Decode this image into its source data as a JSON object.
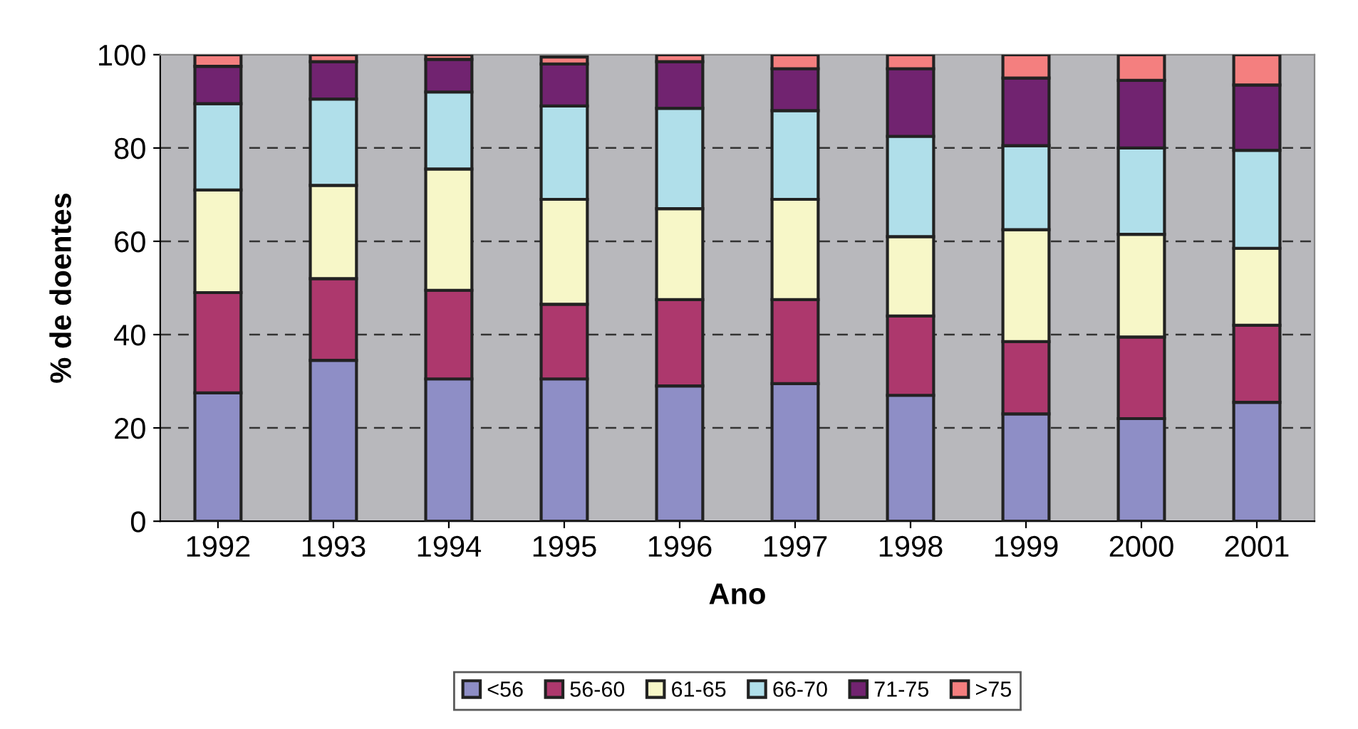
{
  "chart_data": {
    "type": "bar",
    "stacked": true,
    "xlabel": "Ano",
    "ylabel": "% de doentes",
    "categories": [
      "1992",
      "1993",
      "1994",
      "1995",
      "1996",
      "1997",
      "1998",
      "1999",
      "2000",
      "2001"
    ],
    "series": [
      {
        "name": "<56",
        "color": "#8e8ec6",
        "values": [
          27.5,
          34.5,
          30.5,
          30.5,
          29,
          29.5,
          27,
          23,
          22,
          25.5
        ]
      },
      {
        "name": "56-60",
        "color": "#ad386d",
        "values": [
          21.5,
          17.5,
          19,
          16,
          18.5,
          18,
          17,
          15.5,
          17.5,
          16.5
        ]
      },
      {
        "name": "61-65",
        "color": "#f7f7c8",
        "values": [
          22,
          20,
          26,
          22.5,
          19.5,
          21.5,
          17,
          24,
          22,
          16.5
        ]
      },
      {
        "name": "66-70",
        "color": "#b0dfea",
        "values": [
          18.5,
          18.5,
          16.5,
          20,
          21.5,
          19,
          21.5,
          18,
          18.5,
          21
        ]
      },
      {
        "name": "71-75",
        "color": "#712370",
        "values": [
          8,
          8,
          7,
          9,
          10,
          9,
          14.5,
          14.5,
          14.5,
          14
        ]
      },
      {
        "name": ">75",
        "color": "#f47f7f",
        "values": [
          2.5,
          1.5,
          1,
          1.5,
          1.5,
          3,
          3,
          5,
          5.5,
          6.5
        ]
      }
    ],
    "ylim": [
      0,
      100
    ],
    "yticks": [
      0,
      20,
      40,
      60,
      80,
      100
    ],
    "grid": "y",
    "legend": "bottom"
  }
}
